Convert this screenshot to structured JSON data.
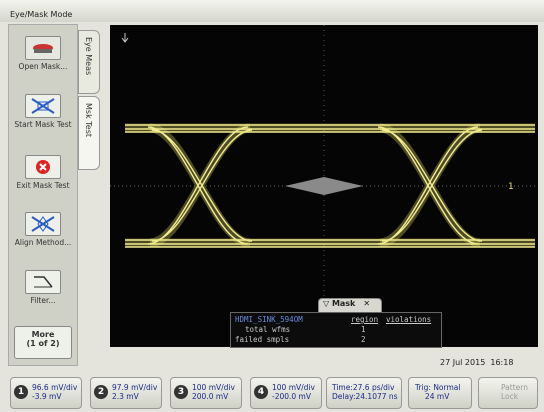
{
  "window_title": "Eye/Mask Mode",
  "side_buttons": [
    "Open Mask...",
    "Start Mask Test",
    "Exit Mask Test",
    "Align Method...",
    "Filter..."
  ],
  "more_button": {
    "label": "More",
    "sub": "(1 of 2)"
  },
  "tabs": [
    "Eye Meas",
    "Msk Test"
  ],
  "marker": "1",
  "mask_panel": {
    "title": "Mask",
    "source": "HDMI_SINK_594OM",
    "headers": [
      "region",
      "violations"
    ],
    "rows": [
      {
        "label": "total wfms",
        "value": 1
      },
      {
        "label": "failed smpls",
        "value": 2
      }
    ]
  },
  "timestamp": "27 Jul 2015  16:18",
  "channels": [
    {
      "number": "1",
      "scale": "96.6 mV/div",
      "offset": "-3.9 mV"
    },
    {
      "number": "2",
      "scale": "97.9 mV/div",
      "offset": "2.3 mV"
    },
    {
      "number": "3",
      "scale": "100 mV/div",
      "offset": "200.0 mV"
    },
    {
      "number": "4",
      "scale": "100 mV/div",
      "offset": "-200.0 mV"
    }
  ],
  "timebase": {
    "time": "Time:27.6 ps/div",
    "delay": "Delay:24.1077 ns"
  },
  "trigger": {
    "mode": "Trig: Normal",
    "level": "24 mV"
  },
  "pattern_lock": [
    "Pattern",
    "Lock"
  ]
}
